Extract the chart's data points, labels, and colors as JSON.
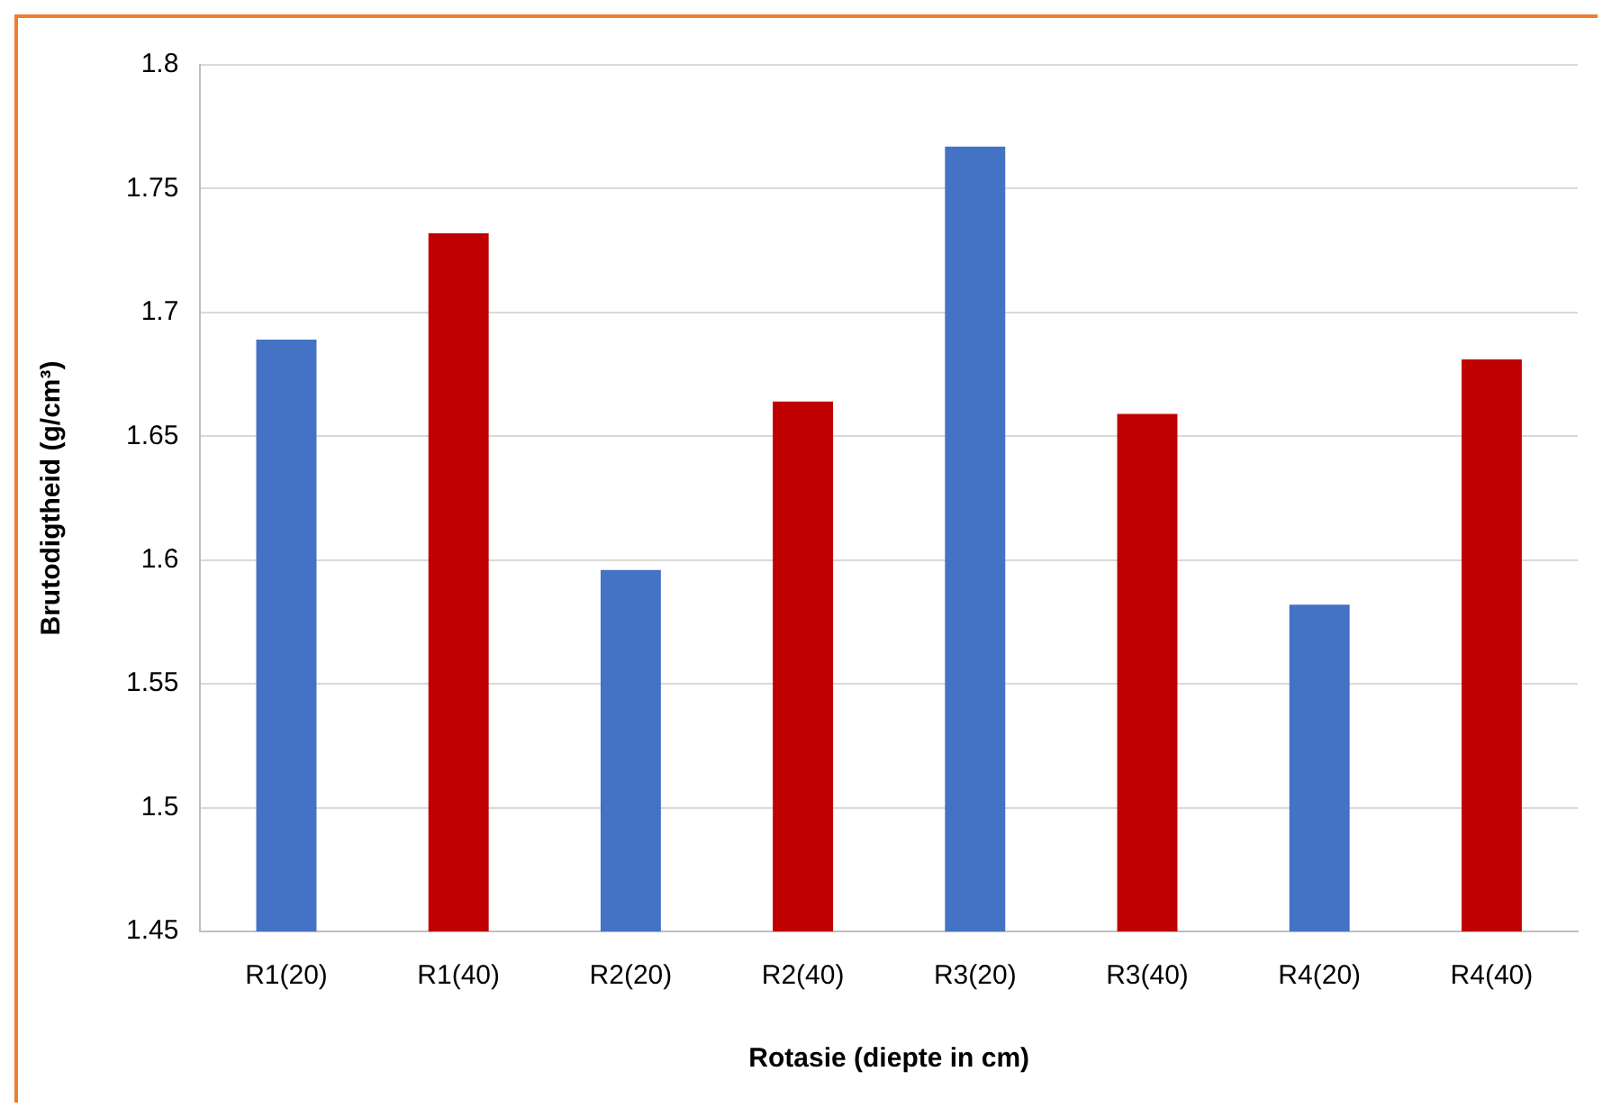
{
  "chart_data": {
    "type": "bar",
    "xlabel": "Rotasie (diepte in cm)",
    "ylabel": "Brutodigtheid (g/cm³)",
    "categories": [
      "R1(20)",
      "R1(40)",
      "R2(20)",
      "R2(40)",
      "R3(20)",
      "R3(40)",
      "R4(20)",
      "R4(40)"
    ],
    "values": [
      1.689,
      1.732,
      1.596,
      1.664,
      1.767,
      1.659,
      1.582,
      1.681
    ],
    "colors": [
      "#4472c4",
      "#c00000",
      "#4472c4",
      "#c00000",
      "#4472c4",
      "#c00000",
      "#4472c4",
      "#c00000"
    ],
    "ylim": [
      1.45,
      1.8
    ],
    "yticks": [
      1.45,
      1.5,
      1.55,
      1.6,
      1.65,
      1.7,
      1.75,
      1.8
    ],
    "grid": "y"
  }
}
